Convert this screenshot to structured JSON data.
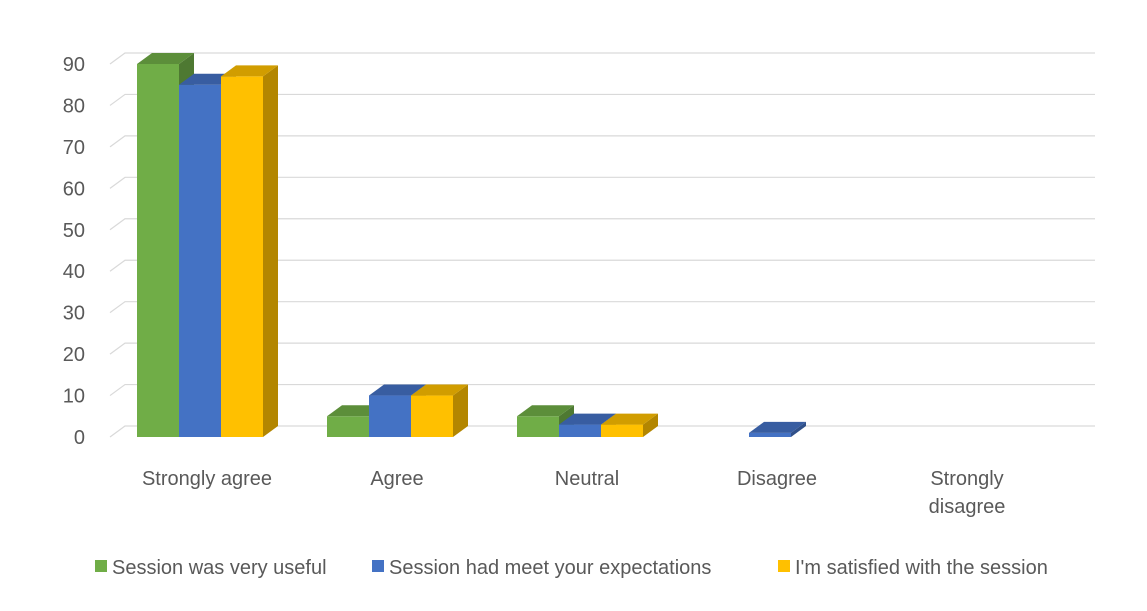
{
  "chart_data": {
    "type": "bar",
    "title": "",
    "xlabel": "",
    "ylabel": "",
    "ylim": [
      0,
      90
    ],
    "y_ticks": [
      0,
      10,
      20,
      30,
      40,
      50,
      60,
      70,
      80,
      90
    ],
    "grid": true,
    "legend_position": "bottom",
    "categories": [
      "Strongly agree",
      "Agree",
      "Neutral",
      "Disagree",
      "Strongly disagree"
    ],
    "series": [
      {
        "name": "Session was very useful",
        "color": "#70ad47",
        "values": [
          90,
          5,
          5,
          0,
          0
        ]
      },
      {
        "name": "Session had meet your expectations",
        "color": "#4472c4",
        "values": [
          85,
          10,
          3,
          1,
          0
        ]
      },
      {
        "name": "I'm satisfied with the session",
        "color": "#ffc000",
        "values": [
          87,
          10,
          3,
          0,
          0
        ]
      }
    ]
  }
}
